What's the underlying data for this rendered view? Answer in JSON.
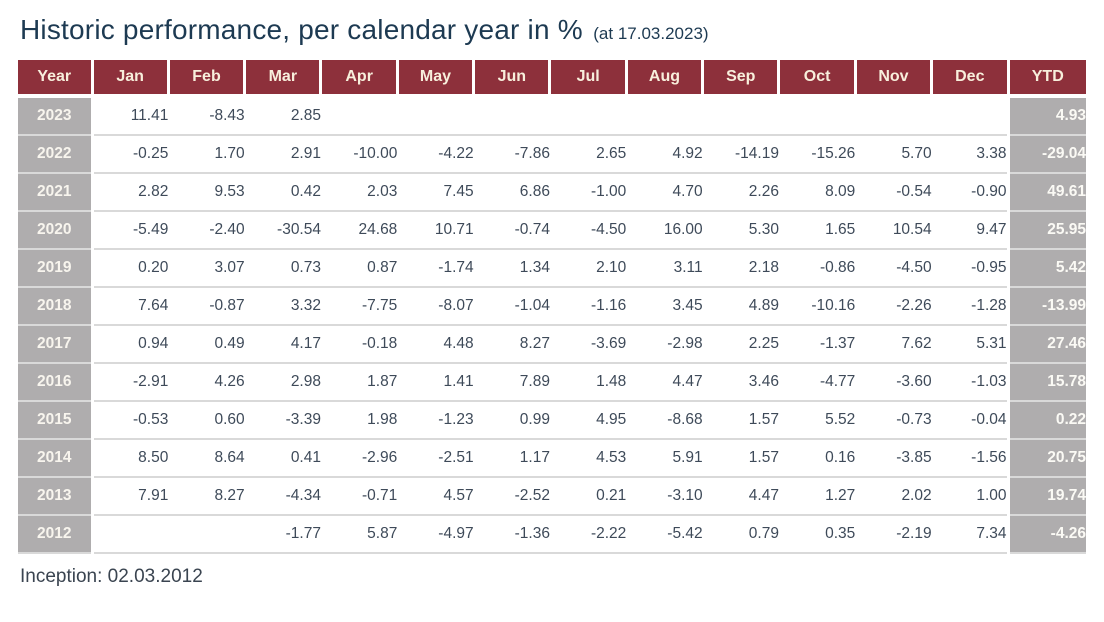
{
  "title": {
    "main": "Historic performance, per calendar year in %",
    "suffix": "(at 17.03.2023)"
  },
  "footer": {
    "inception": "Inception: 02.03.2012"
  },
  "colors": {
    "header_bg": "#8D303B",
    "header_text": "#F8EFDC",
    "row_label_bg": "#AFADAE",
    "row_label_text": "#F8F5EE",
    "cell_text": "#3E4A59",
    "title_text": "#1D3A52",
    "separator": "#D9D9D9"
  },
  "chart_data": {
    "type": "table",
    "title": "Historic performance, per calendar year in %",
    "as_of": "17.03.2023",
    "columns": [
      "Year",
      "Jan",
      "Feb",
      "Mar",
      "Apr",
      "May",
      "Jun",
      "Jul",
      "Aug",
      "Sep",
      "Oct",
      "Nov",
      "Dec",
      "YTD"
    ],
    "rows": [
      {
        "year": "2023",
        "months": [
          "11.41",
          "-8.43",
          "2.85",
          "",
          "",
          "",
          "",
          "",
          "",
          "",
          "",
          ""
        ],
        "ytd": "4.93"
      },
      {
        "year": "2022",
        "months": [
          "-0.25",
          "1.70",
          "2.91",
          "-10.00",
          "-4.22",
          "-7.86",
          "2.65",
          "4.92",
          "-14.19",
          "-15.26",
          "5.70",
          "3.38"
        ],
        "ytd": "-29.04"
      },
      {
        "year": "2021",
        "months": [
          "2.82",
          "9.53",
          "0.42",
          "2.03",
          "7.45",
          "6.86",
          "-1.00",
          "4.70",
          "2.26",
          "8.09",
          "-0.54",
          "-0.90"
        ],
        "ytd": "49.61"
      },
      {
        "year": "2020",
        "months": [
          "-5.49",
          "-2.40",
          "-30.54",
          "24.68",
          "10.71",
          "-0.74",
          "-4.50",
          "16.00",
          "5.30",
          "1.65",
          "10.54",
          "9.47"
        ],
        "ytd": "25.95"
      },
      {
        "year": "2019",
        "months": [
          "0.20",
          "3.07",
          "0.73",
          "0.87",
          "-1.74",
          "1.34",
          "2.10",
          "3.11",
          "2.18",
          "-0.86",
          "-4.50",
          "-0.95"
        ],
        "ytd": "5.42"
      },
      {
        "year": "2018",
        "months": [
          "7.64",
          "-0.87",
          "3.32",
          "-7.75",
          "-8.07",
          "-1.04",
          "-1.16",
          "3.45",
          "4.89",
          "-10.16",
          "-2.26",
          "-1.28"
        ],
        "ytd": "-13.99"
      },
      {
        "year": "2017",
        "months": [
          "0.94",
          "0.49",
          "4.17",
          "-0.18",
          "4.48",
          "8.27",
          "-3.69",
          "-2.98",
          "2.25",
          "-1.37",
          "7.62",
          "5.31"
        ],
        "ytd": "27.46"
      },
      {
        "year": "2016",
        "months": [
          "-2.91",
          "4.26",
          "2.98",
          "1.87",
          "1.41",
          "7.89",
          "1.48",
          "4.47",
          "3.46",
          "-4.77",
          "-3.60",
          "-1.03"
        ],
        "ytd": "15.78"
      },
      {
        "year": "2015",
        "months": [
          "-0.53",
          "0.60",
          "-3.39",
          "1.98",
          "-1.23",
          "0.99",
          "4.95",
          "-8.68",
          "1.57",
          "5.52",
          "-0.73",
          "-0.04"
        ],
        "ytd": "0.22"
      },
      {
        "year": "2014",
        "months": [
          "8.50",
          "8.64",
          "0.41",
          "-2.96",
          "-2.51",
          "1.17",
          "4.53",
          "5.91",
          "1.57",
          "0.16",
          "-3.85",
          "-1.56"
        ],
        "ytd": "20.75"
      },
      {
        "year": "2013",
        "months": [
          "7.91",
          "8.27",
          "-4.34",
          "-0.71",
          "4.57",
          "-2.52",
          "0.21",
          "-3.10",
          "4.47",
          "1.27",
          "2.02",
          "1.00"
        ],
        "ytd": "19.74"
      },
      {
        "year": "2012",
        "months": [
          "",
          "",
          "-1.77",
          "5.87",
          "-4.97",
          "-1.36",
          "-2.22",
          "-5.42",
          "0.79",
          "0.35",
          "-2.19",
          "7.34"
        ],
        "ytd": "-4.26"
      }
    ]
  }
}
